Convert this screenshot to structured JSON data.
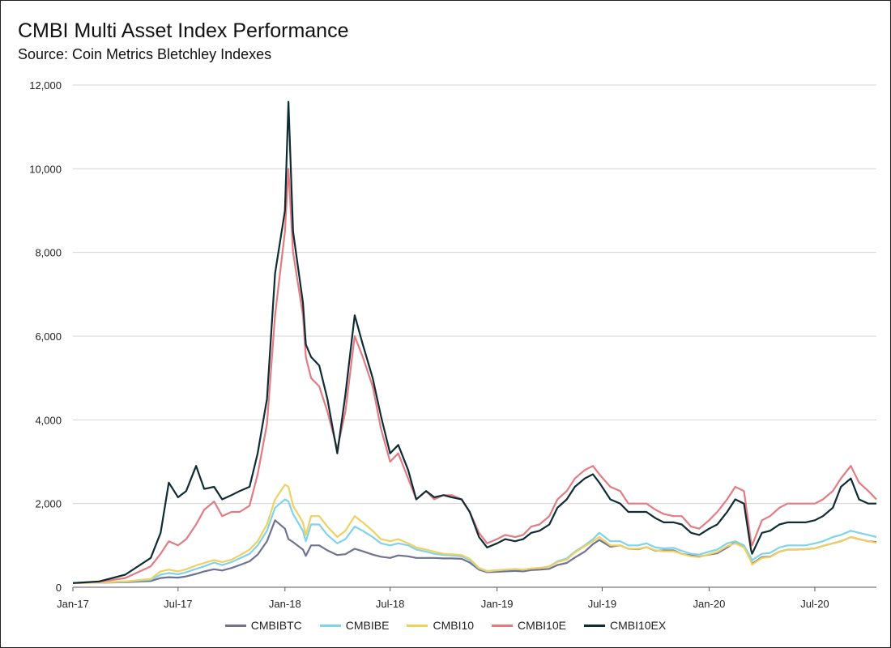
{
  "chart_data": {
    "type": "line",
    "title": "CMBI Multi Asset Index Performance",
    "subtitle": "Source: Coin Metrics Bletchley Indexes",
    "xlabel": "",
    "ylabel": "",
    "ylim": [
      0,
      12000
    ],
    "y_ticks": [
      "0",
      "2,000",
      "4,000",
      "6,000",
      "8,000",
      "10,000",
      "12,000"
    ],
    "x_tick_labels": [
      "Jan-17",
      "Jul-17",
      "Jan-18",
      "Jul-18",
      "Jan-19",
      "Jul-19",
      "Jan-20",
      "Jul-20"
    ],
    "x": [
      "2017-01-01",
      "2017-02-15",
      "2017-04-01",
      "2017-05-15",
      "2017-06-01",
      "2017-06-15",
      "2017-07-01",
      "2017-07-15",
      "2017-08-01",
      "2017-08-15",
      "2017-09-01",
      "2017-09-15",
      "2017-10-01",
      "2017-10-15",
      "2017-11-01",
      "2017-11-15",
      "2017-12-01",
      "2017-12-15",
      "2018-01-01",
      "2018-01-07",
      "2018-01-15",
      "2018-02-01",
      "2018-02-06",
      "2018-02-15",
      "2018-03-01",
      "2018-03-15",
      "2018-04-01",
      "2018-04-15",
      "2018-05-01",
      "2018-05-15",
      "2018-06-01",
      "2018-06-15",
      "2018-07-01",
      "2018-07-15",
      "2018-08-01",
      "2018-08-15",
      "2018-09-01",
      "2018-09-15",
      "2018-10-01",
      "2018-10-15",
      "2018-11-01",
      "2018-11-15",
      "2018-12-01",
      "2018-12-15",
      "2019-01-01",
      "2019-01-15",
      "2019-02-01",
      "2019-02-15",
      "2019-03-01",
      "2019-03-15",
      "2019-04-01",
      "2019-04-15",
      "2019-05-01",
      "2019-05-15",
      "2019-06-01",
      "2019-06-15",
      "2019-06-26",
      "2019-07-15",
      "2019-08-01",
      "2019-08-15",
      "2019-09-01",
      "2019-09-15",
      "2019-10-01",
      "2019-10-15",
      "2019-11-01",
      "2019-11-15",
      "2019-12-01",
      "2019-12-15",
      "2020-01-01",
      "2020-01-15",
      "2020-02-01",
      "2020-02-15",
      "2020-03-01",
      "2020-03-13",
      "2020-03-15",
      "2020-04-01",
      "2020-04-15",
      "2020-05-01",
      "2020-05-15",
      "2020-06-01",
      "2020-06-15",
      "2020-07-01",
      "2020-07-15",
      "2020-08-01",
      "2020-08-15",
      "2020-09-01",
      "2020-09-15",
      "2020-10-01",
      "2020-10-15"
    ],
    "series": [
      {
        "name": "CMBIBTC",
        "color": "#6f7391",
        "values": [
          100,
          110,
          120,
          150,
          220,
          240,
          230,
          260,
          320,
          380,
          430,
          400,
          460,
          530,
          620,
          780,
          1100,
          1600,
          1400,
          1150,
          1080,
          900,
          750,
          1000,
          1000,
          880,
          770,
          790,
          920,
          860,
          780,
          730,
          700,
          760,
          740,
          700,
          700,
          700,
          690,
          690,
          680,
          590,
          420,
          360,
          370,
          380,
          390,
          380,
          410,
          420,
          440,
          530,
          580,
          710,
          850,
          1030,
          1130,
          970,
          1000,
          920,
          910,
          960,
          870,
          880,
          880,
          800,
          760,
          730,
          780,
          810,
          950,
          1080,
          990,
          650,
          560,
          720,
          730,
          850,
          900,
          900,
          910,
          930,
          990,
          1050,
          1100,
          1200,
          1150,
          1100,
          1080
        ]
      },
      {
        "name": "CMBIBE",
        "color": "#7fd3ea",
        "values": [
          100,
          110,
          130,
          180,
          300,
          340,
          310,
          360,
          440,
          500,
          590,
          530,
          600,
          690,
          800,
          1000,
          1350,
          1900,
          2100,
          2050,
          1750,
          1350,
          1100,
          1500,
          1500,
          1250,
          1050,
          1150,
          1450,
          1350,
          1200,
          1050,
          1000,
          1050,
          1000,
          900,
          850,
          800,
          770,
          760,
          740,
          650,
          450,
          380,
          400,
          420,
          430,
          420,
          450,
          460,
          500,
          620,
          690,
          850,
          1000,
          1150,
          1300,
          1100,
          1100,
          1000,
          1000,
          1050,
          950,
          930,
          940,
          870,
          800,
          780,
          850,
          900,
          1050,
          1100,
          1000,
          700,
          650,
          800,
          820,
          950,
          1000,
          1000,
          1000,
          1050,
          1100,
          1200,
          1250,
          1350,
          1300,
          1250,
          1200
        ]
      },
      {
        "name": "CMBI10",
        "color": "#f0d060",
        "values": [
          100,
          115,
          140,
          200,
          380,
          420,
          380,
          430,
          520,
          580,
          650,
          600,
          660,
          760,
          900,
          1100,
          1500,
          2100,
          2450,
          2400,
          1950,
          1550,
          1250,
          1700,
          1700,
          1450,
          1200,
          1350,
          1700,
          1550,
          1350,
          1150,
          1100,
          1150,
          1050,
          950,
          900,
          850,
          800,
          790,
          770,
          680,
          460,
          390,
          410,
          420,
          440,
          420,
          450,
          460,
          490,
          600,
          660,
          830,
          980,
          1100,
          1200,
          1000,
          1000,
          920,
          920,
          960,
          880,
          860,
          860,
          800,
          740,
          720,
          790,
          840,
          980,
          1050,
          950,
          620,
          540,
          700,
          720,
          850,
          900,
          900,
          910,
          930,
          990,
          1050,
          1100,
          1200,
          1150,
          1100,
          1060
        ]
      },
      {
        "name": "CMBI10E",
        "color": "#e37b83",
        "values": [
          100,
          130,
          220,
          500,
          800,
          1100,
          1000,
          1150,
          1500,
          1850,
          2050,
          1700,
          1800,
          1800,
          1950,
          2700,
          3900,
          6500,
          8500,
          10000,
          8000,
          6500,
          5500,
          5000,
          4800,
          4200,
          3300,
          4200,
          6000,
          5500,
          4800,
          3800,
          3000,
          3200,
          2600,
          2100,
          2300,
          2100,
          2200,
          2200,
          2100,
          1800,
          1300,
          1050,
          1150,
          1250,
          1200,
          1250,
          1450,
          1500,
          1700,
          2100,
          2300,
          2600,
          2800,
          2900,
          2700,
          2400,
          2300,
          2000,
          2000,
          2000,
          1850,
          1750,
          1700,
          1700,
          1450,
          1400,
          1600,
          1800,
          2100,
          2400,
          2300,
          1100,
          1000,
          1600,
          1700,
          1900,
          2000,
          2000,
          2000,
          2000,
          2100,
          2300,
          2600,
          2900,
          2500,
          2300,
          2100
        ]
      },
      {
        "name": "CMBI10EX",
        "color": "#0f2b33",
        "values": [
          100,
          140,
          300,
          700,
          1300,
          2500,
          2150,
          2300,
          2900,
          2350,
          2400,
          2100,
          2200,
          2300,
          2400,
          3200,
          4500,
          7500,
          9000,
          11600,
          8500,
          6800,
          5800,
          5500,
          5300,
          4500,
          3200,
          4600,
          6500,
          5800,
          5000,
          4100,
          3200,
          3400,
          2800,
          2100,
          2300,
          2150,
          2200,
          2150,
          2100,
          1800,
          1200,
          950,
          1050,
          1150,
          1100,
          1150,
          1300,
          1350,
          1500,
          1900,
          2100,
          2400,
          2600,
          2700,
          2500,
          2100,
          2000,
          1800,
          1800,
          1800,
          1650,
          1550,
          1550,
          1500,
          1300,
          1250,
          1400,
          1500,
          1800,
          2100,
          2000,
          900,
          800,
          1300,
          1350,
          1500,
          1550,
          1550,
          1550,
          1600,
          1700,
          1900,
          2400,
          2600,
          2100,
          2000,
          2000
        ]
      }
    ],
    "grid": true,
    "legend": "bottom-center"
  }
}
